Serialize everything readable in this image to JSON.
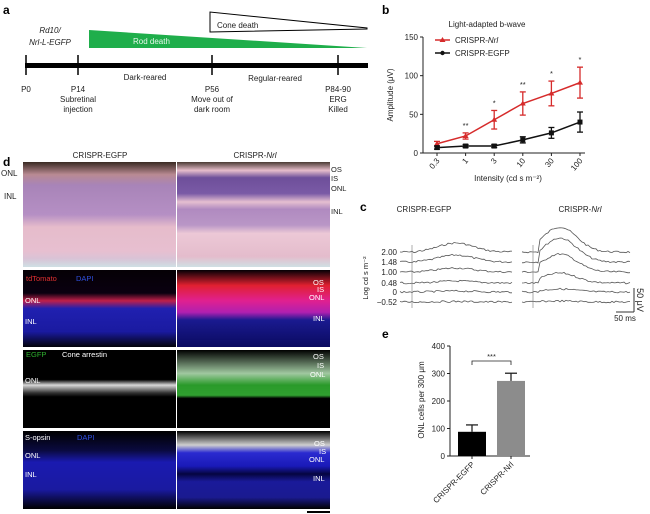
{
  "panel_labels": {
    "a": "a",
    "b": "b",
    "c": "c",
    "d": "d",
    "e": "e"
  },
  "timeline": {
    "strain_line1": "Rd10/",
    "strain_line2": "Nrl-L-EGFP",
    "rod_death": "Rod death",
    "cone_death": "Cone death",
    "dark_reared": "Dark-reared",
    "regular_reared": "Regular-reared",
    "timepoints": [
      {
        "label": "P0",
        "sub1": "",
        "sub2": ""
      },
      {
        "label": "P14",
        "sub1": "Subretinal",
        "sub2": "injection"
      },
      {
        "label": "P56",
        "sub1": "Move out of",
        "sub2": "dark room"
      },
      {
        "label": "P84-90",
        "sub1": "ERG",
        "sub2": "Killed"
      }
    ],
    "colors": {
      "rod": "#1fae4b",
      "bar": "#000000"
    }
  },
  "erg_traces": {
    "group1": "CRISPR-EGFP",
    "group2_prefix": "CRISPR-",
    "group2_gene": "Nrl",
    "ylabel": "Log cd s m⁻²",
    "levels": [
      "2.00",
      "1.48",
      "1.00",
      "0.48",
      "0",
      "−0.52"
    ],
    "scale_y": "50 μV",
    "scale_x": "50 ms"
  },
  "histology": {
    "col1": "CRISPR-EGFP",
    "col2_prefix": "CRISPR-",
    "col2_gene": "Nrl",
    "left_labels": {
      "onl": "ONL",
      "inl": "INL"
    },
    "right_labels": {
      "os": "OS",
      "is": "IS",
      "onl": "ONL",
      "inl": "INL"
    },
    "stains": {
      "row2_a": "tdTomato",
      "row2_b": "DAPI",
      "row3_a": "EGFP",
      "row3_b": "Cone arrestin",
      "row4_a": "S-opsin",
      "row4_b": "DAPI"
    }
  },
  "chart_data": [
    {
      "type": "line",
      "title": "Light-adapted b-wave",
      "xlabel": "Intensity (cd s m⁻²)",
      "ylabel": "Amplitude (μV)",
      "categories": [
        "0.3",
        "1",
        "3",
        "10",
        "30",
        "100"
      ],
      "ylim": [
        0,
        150
      ],
      "yticks": [
        "0",
        "50",
        "100",
        "150"
      ],
      "legend_placement": "top-left",
      "series": [
        {
          "name_prefix": "CRISPR-",
          "name_gene": "Nrl",
          "color": "#d62b2b",
          "marker": "triangle",
          "values": [
            12,
            22,
            43,
            64,
            77,
            91
          ],
          "errors": [
            3,
            4,
            12,
            15,
            16,
            20
          ]
        },
        {
          "name_prefix": "CRISPR-EGFP",
          "name_gene": "",
          "color": "#111111",
          "marker": "circle",
          "values": [
            7,
            9,
            9,
            17,
            26,
            40
          ],
          "errors": [
            2,
            2,
            2,
            4,
            7,
            13
          ]
        }
      ],
      "significance": [
        "",
        "**",
        "*",
        "**",
        "*",
        "*"
      ]
    },
    {
      "type": "bar",
      "ylabel": "ONL cells per 300 μm",
      "categories": [
        "CRISPR-EGFP",
        "CRISPR-Nrl"
      ],
      "values": [
        88,
        273
      ],
      "errors": [
        25,
        28
      ],
      "colors": [
        "#000000",
        "#8c8c8c"
      ],
      "ylim": [
        0,
        400
      ],
      "yticks": [
        "0",
        "100",
        "200",
        "300",
        "400"
      ],
      "significance": "***"
    }
  ]
}
